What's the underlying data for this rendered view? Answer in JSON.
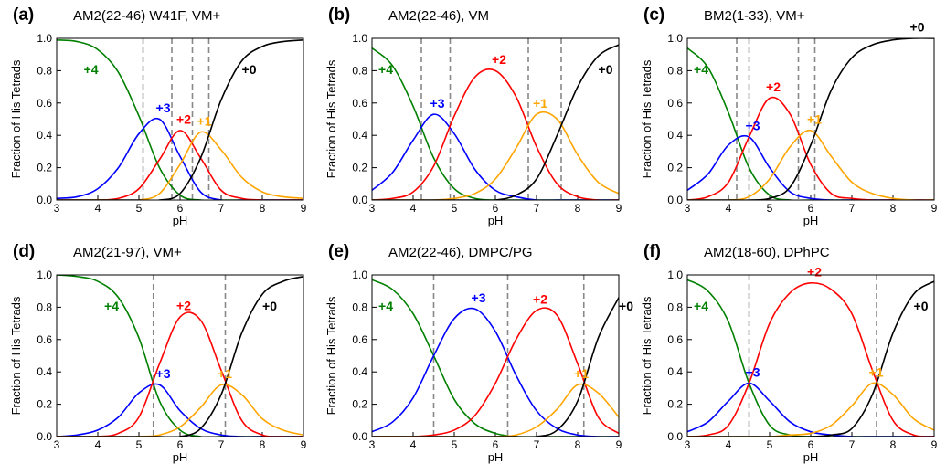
{
  "chart_data": [
    {
      "type": "line",
      "panel_label": "(a)",
      "title": "AM2(22-46) W41F, VM+",
      "xlabel": "pH",
      "ylabel": "Fraction of His Tetrads",
      "x": [
        3,
        3.5,
        4,
        4.5,
        5,
        5.5,
        6,
        6.5,
        7,
        7.5,
        8,
        8.5,
        9
      ],
      "xlim": [
        3,
        9
      ],
      "xticks": [
        3,
        4,
        5,
        6,
        7,
        8,
        9
      ],
      "ylim": [
        0,
        1
      ],
      "yticks": [
        {
          "value": 0,
          "label": "0.0"
        },
        {
          "value": 0.2,
          "label": "0.2"
        },
        {
          "value": 0.4,
          "label": "0.4"
        },
        {
          "value": 0.6,
          "label": "0.6"
        },
        {
          "value": 0.8,
          "label": "0.8"
        },
        {
          "value": 1,
          "label": "1.0"
        }
      ],
      "vlines": [
        5.1,
        5.8,
        6.3,
        6.7
      ],
      "series": [
        {
          "name": "+4",
          "color": "#008000",
          "values": [
            0.99,
            0.98,
            0.93,
            0.79,
            0.52,
            0.2,
            0.03,
            0.0,
            0,
            0,
            0,
            0,
            0
          ]
        },
        {
          "name": "+3",
          "color": "#0000ff",
          "values": [
            0.01,
            0.02,
            0.07,
            0.2,
            0.41,
            0.5,
            0.27,
            0.05,
            0.0,
            0,
            0,
            0,
            0
          ]
        },
        {
          "name": "+2",
          "color": "#ff0000",
          "values": [
            0,
            0,
            0.0,
            0.01,
            0.07,
            0.25,
            0.43,
            0.26,
            0.06,
            0.01,
            0,
            0,
            0
          ]
        },
        {
          "name": "+1",
          "color": "#ffa500",
          "values": [
            0,
            0,
            0,
            0,
            0.0,
            0.04,
            0.22,
            0.42,
            0.31,
            0.14,
            0.05,
            0.02,
            0.01
          ]
        },
        {
          "name": "+0",
          "color": "#000000",
          "values": [
            0,
            0,
            0,
            0,
            0,
            0.0,
            0.04,
            0.26,
            0.62,
            0.86,
            0.95,
            0.98,
            0.99
          ]
        }
      ]
    },
    {
      "type": "line",
      "panel_label": "(b)",
      "title": "AM2(22-46), VM",
      "xlabel": "pH",
      "ylabel": "Fraction of His Tetrads",
      "x": [
        3,
        3.5,
        4,
        4.5,
        5,
        5.5,
        6,
        6.5,
        7,
        7.5,
        8,
        8.5,
        9
      ],
      "xlim": [
        3,
        9
      ],
      "xticks": [
        3,
        4,
        5,
        6,
        7,
        8,
        9
      ],
      "ylim": [
        0,
        1
      ],
      "yticks": [
        {
          "value": 0,
          "label": "0.0"
        },
        {
          "value": 0.2,
          "label": "0.2"
        },
        {
          "value": 0.4,
          "label": "0.4"
        },
        {
          "value": 0.6,
          "label": "0.6"
        },
        {
          "value": 0.8,
          "label": "0.8"
        },
        {
          "value": 1,
          "label": "1.0"
        }
      ],
      "vlines": [
        4.2,
        4.9,
        6.8,
        7.6
      ],
      "series": [
        {
          "name": "+4",
          "color": "#008000",
          "values": [
            0.94,
            0.83,
            0.58,
            0.26,
            0.07,
            0.01,
            0,
            0,
            0,
            0,
            0,
            0,
            0
          ]
        },
        {
          "name": "+3",
          "color": "#0000ff",
          "values": [
            0.06,
            0.17,
            0.37,
            0.53,
            0.41,
            0.19,
            0.06,
            0.02,
            0.0,
            0,
            0,
            0,
            0
          ]
        },
        {
          "name": "+2",
          "color": "#ff0000",
          "values": [
            0,
            0.01,
            0.05,
            0.21,
            0.52,
            0.76,
            0.8,
            0.64,
            0.33,
            0.1,
            0.02,
            0.0,
            0
          ]
        },
        {
          "name": "+1",
          "color": "#ffa500",
          "values": [
            0,
            0,
            0,
            0,
            0.01,
            0.04,
            0.13,
            0.32,
            0.53,
            0.5,
            0.28,
            0.11,
            0.04
          ]
        },
        {
          "name": "+0",
          "color": "#000000",
          "values": [
            0,
            0,
            0,
            0,
            0,
            0,
            0.0,
            0.03,
            0.13,
            0.4,
            0.7,
            0.89,
            0.96
          ]
        }
      ]
    },
    {
      "type": "line",
      "panel_label": "(c)",
      "title": "BM2(1-33), VM+",
      "xlabel": "pH",
      "ylabel": "Fraction of His Tetrads",
      "x": [
        3,
        3.5,
        4,
        4.5,
        5,
        5.5,
        6,
        6.5,
        7,
        7.5,
        8,
        8.5,
        9
      ],
      "xlim": [
        3,
        9
      ],
      "xticks": [
        3,
        4,
        5,
        6,
        7,
        8,
        9
      ],
      "ylim": [
        0,
        1
      ],
      "yticks": [
        {
          "value": 0,
          "label": "0.0"
        },
        {
          "value": 0.2,
          "label": "0.2"
        },
        {
          "value": 0.4,
          "label": "0.4"
        },
        {
          "value": 0.6,
          "label": "0.6"
        },
        {
          "value": 0.8,
          "label": "0.8"
        },
        {
          "value": 1,
          "label": "1.0"
        }
      ],
      "vlines": [
        4.2,
        4.5,
        5.7,
        6.1
      ],
      "series": [
        {
          "name": "+4",
          "color": "#008000",
          "values": [
            0.94,
            0.82,
            0.54,
            0.2,
            0.03,
            0,
            0,
            0,
            0,
            0,
            0,
            0,
            0
          ]
        },
        {
          "name": "+3",
          "color": "#0000ff",
          "values": [
            0.06,
            0.16,
            0.34,
            0.39,
            0.2,
            0.05,
            0.01,
            0,
            0,
            0,
            0,
            0,
            0
          ]
        },
        {
          "name": "+2",
          "color": "#ff0000",
          "values": [
            0,
            0.02,
            0.11,
            0.39,
            0.63,
            0.53,
            0.22,
            0.04,
            0.01,
            0,
            0,
            0,
            0
          ]
        },
        {
          "name": "+1",
          "color": "#ffa500",
          "values": [
            0,
            0,
            0,
            0.02,
            0.13,
            0.33,
            0.43,
            0.27,
            0.11,
            0.04,
            0.01,
            0,
            0
          ]
        },
        {
          "name": "+0",
          "color": "#000000",
          "values": [
            0,
            0,
            0,
            0,
            0.01,
            0.08,
            0.34,
            0.68,
            0.88,
            0.96,
            0.99,
            1.0,
            1.0
          ]
        }
      ]
    },
    {
      "type": "line",
      "panel_label": "(d)",
      "title": "AM2(21-97), VM+",
      "xlabel": "pH",
      "ylabel": "Fraction of His Tetrads",
      "x": [
        3,
        3.5,
        4,
        4.5,
        5,
        5.5,
        6,
        6.5,
        7,
        7.5,
        8,
        8.5,
        9
      ],
      "xlim": [
        3,
        9
      ],
      "xticks": [
        3,
        4,
        5,
        6,
        7,
        8,
        9
      ],
      "ylim": [
        0,
        1
      ],
      "yticks": [
        {
          "value": 0,
          "label": "0.0"
        },
        {
          "value": 0.2,
          "label": "0.2"
        },
        {
          "value": 0.4,
          "label": "0.4"
        },
        {
          "value": 0.6,
          "label": "0.6"
        },
        {
          "value": 0.8,
          "label": "0.8"
        },
        {
          "value": 1,
          "label": "1.0"
        }
      ],
      "vlines": [
        5.35,
        7.1
      ],
      "series": [
        {
          "name": "+4",
          "color": "#008000",
          "values": [
            1.0,
            0.99,
            0.96,
            0.86,
            0.61,
            0.22,
            0.04,
            0,
            0,
            0,
            0,
            0,
            0
          ]
        },
        {
          "name": "+3",
          "color": "#0000ff",
          "values": [
            0,
            0.01,
            0.04,
            0.12,
            0.27,
            0.32,
            0.16,
            0.05,
            0.01,
            0,
            0,
            0,
            0
          ]
        },
        {
          "name": "+2",
          "color": "#ff0000",
          "values": [
            0,
            0,
            0,
            0.02,
            0.12,
            0.45,
            0.74,
            0.72,
            0.41,
            0.1,
            0.01,
            0,
            0
          ]
        },
        {
          "name": "+1",
          "color": "#ffa500",
          "values": [
            0,
            0,
            0,
            0,
            0,
            0.01,
            0.06,
            0.18,
            0.32,
            0.26,
            0.11,
            0.04,
            0.01
          ]
        },
        {
          "name": "+0",
          "color": "#000000",
          "values": [
            0,
            0,
            0,
            0,
            0,
            0,
            0,
            0.05,
            0.26,
            0.64,
            0.88,
            0.96,
            0.99
          ]
        }
      ]
    },
    {
      "type": "line",
      "panel_label": "(e)",
      "title": "AM2(22-46), DMPC/PG",
      "xlabel": "pH",
      "ylabel": "Fraction of His Tetrads",
      "x": [
        3,
        3.5,
        4,
        4.5,
        5,
        5.5,
        6,
        6.5,
        7,
        7.5,
        8,
        8.5,
        9
      ],
      "xlim": [
        3,
        9
      ],
      "xticks": [
        3,
        4,
        5,
        6,
        7,
        8,
        9
      ],
      "ylim": [
        0,
        1
      ],
      "yticks": [
        {
          "value": 0,
          "label": "0.0"
        },
        {
          "value": 0.2,
          "label": "0.2"
        },
        {
          "value": 0.4,
          "label": "0.4"
        },
        {
          "value": 0.6,
          "label": "0.6"
        },
        {
          "value": 0.8,
          "label": "0.8"
        },
        {
          "value": 1,
          "label": "1.0"
        }
      ],
      "vlines": [
        4.5,
        6.3,
        8.15
      ],
      "series": [
        {
          "name": "+4",
          "color": "#008000",
          "values": [
            0.97,
            0.91,
            0.76,
            0.5,
            0.23,
            0.08,
            0.02,
            0,
            0,
            0,
            0,
            0,
            0
          ]
        },
        {
          "name": "+3",
          "color": "#0000ff",
          "values": [
            0.03,
            0.09,
            0.24,
            0.5,
            0.73,
            0.79,
            0.65,
            0.38,
            0.16,
            0.05,
            0.01,
            0,
            0
          ]
        },
        {
          "name": "+2",
          "color": "#ff0000",
          "values": [
            0,
            0,
            0,
            0.01,
            0.04,
            0.13,
            0.33,
            0.6,
            0.78,
            0.75,
            0.45,
            0.12,
            0.02
          ]
        },
        {
          "name": "+1",
          "color": "#ffa500",
          "values": [
            0,
            0,
            0,
            0,
            0,
            0,
            0,
            0.01,
            0.06,
            0.17,
            0.32,
            0.27,
            0.12
          ]
        },
        {
          "name": "+0",
          "color": "#000000",
          "values": [
            0,
            0,
            0,
            0,
            0,
            0,
            0,
            0,
            0,
            0.04,
            0.22,
            0.61,
            0.86
          ]
        }
      ]
    },
    {
      "type": "line",
      "panel_label": "(f)",
      "title": "AM2(18-60), DPhPC",
      "xlabel": "pH",
      "ylabel": "Fraction of His Tetrads",
      "x": [
        3,
        3.5,
        4,
        4.5,
        5,
        5.5,
        6,
        6.5,
        7,
        7.5,
        8,
        8.5,
        9
      ],
      "xlim": [
        3,
        9
      ],
      "xticks": [
        3,
        4,
        5,
        6,
        7,
        8,
        9
      ],
      "ylim": [
        0,
        1
      ],
      "yticks": [
        {
          "value": 0,
          "label": "0.0"
        },
        {
          "value": 0.2,
          "label": "0.2"
        },
        {
          "value": 0.4,
          "label": "0.4"
        },
        {
          "value": 0.6,
          "label": "0.6"
        },
        {
          "value": 0.8,
          "label": "0.8"
        },
        {
          "value": 1,
          "label": "1.0"
        }
      ],
      "vlines": [
        4.5,
        7.6
      ],
      "series": [
        {
          "name": "+4",
          "color": "#008000",
          "values": [
            0.97,
            0.9,
            0.71,
            0.33,
            0.07,
            0.01,
            0,
            0,
            0,
            0,
            0,
            0,
            0
          ]
        },
        {
          "name": "+3",
          "color": "#0000ff",
          "values": [
            0.03,
            0.09,
            0.22,
            0.33,
            0.22,
            0.09,
            0.03,
            0.01,
            0,
            0,
            0,
            0,
            0
          ]
        },
        {
          "name": "+2",
          "color": "#ff0000",
          "values": [
            0,
            0.01,
            0.07,
            0.33,
            0.7,
            0.89,
            0.95,
            0.91,
            0.76,
            0.41,
            0.1,
            0.01,
            0
          ]
        },
        {
          "name": "+1",
          "color": "#ffa500",
          "values": [
            0,
            0,
            0,
            0,
            0,
            0.01,
            0.02,
            0.07,
            0.19,
            0.33,
            0.26,
            0.11,
            0.04
          ]
        },
        {
          "name": "+0",
          "color": "#000000",
          "values": [
            0,
            0,
            0,
            0,
            0,
            0,
            0,
            0.01,
            0.05,
            0.26,
            0.64,
            0.88,
            0.96
          ]
        }
      ]
    }
  ]
}
